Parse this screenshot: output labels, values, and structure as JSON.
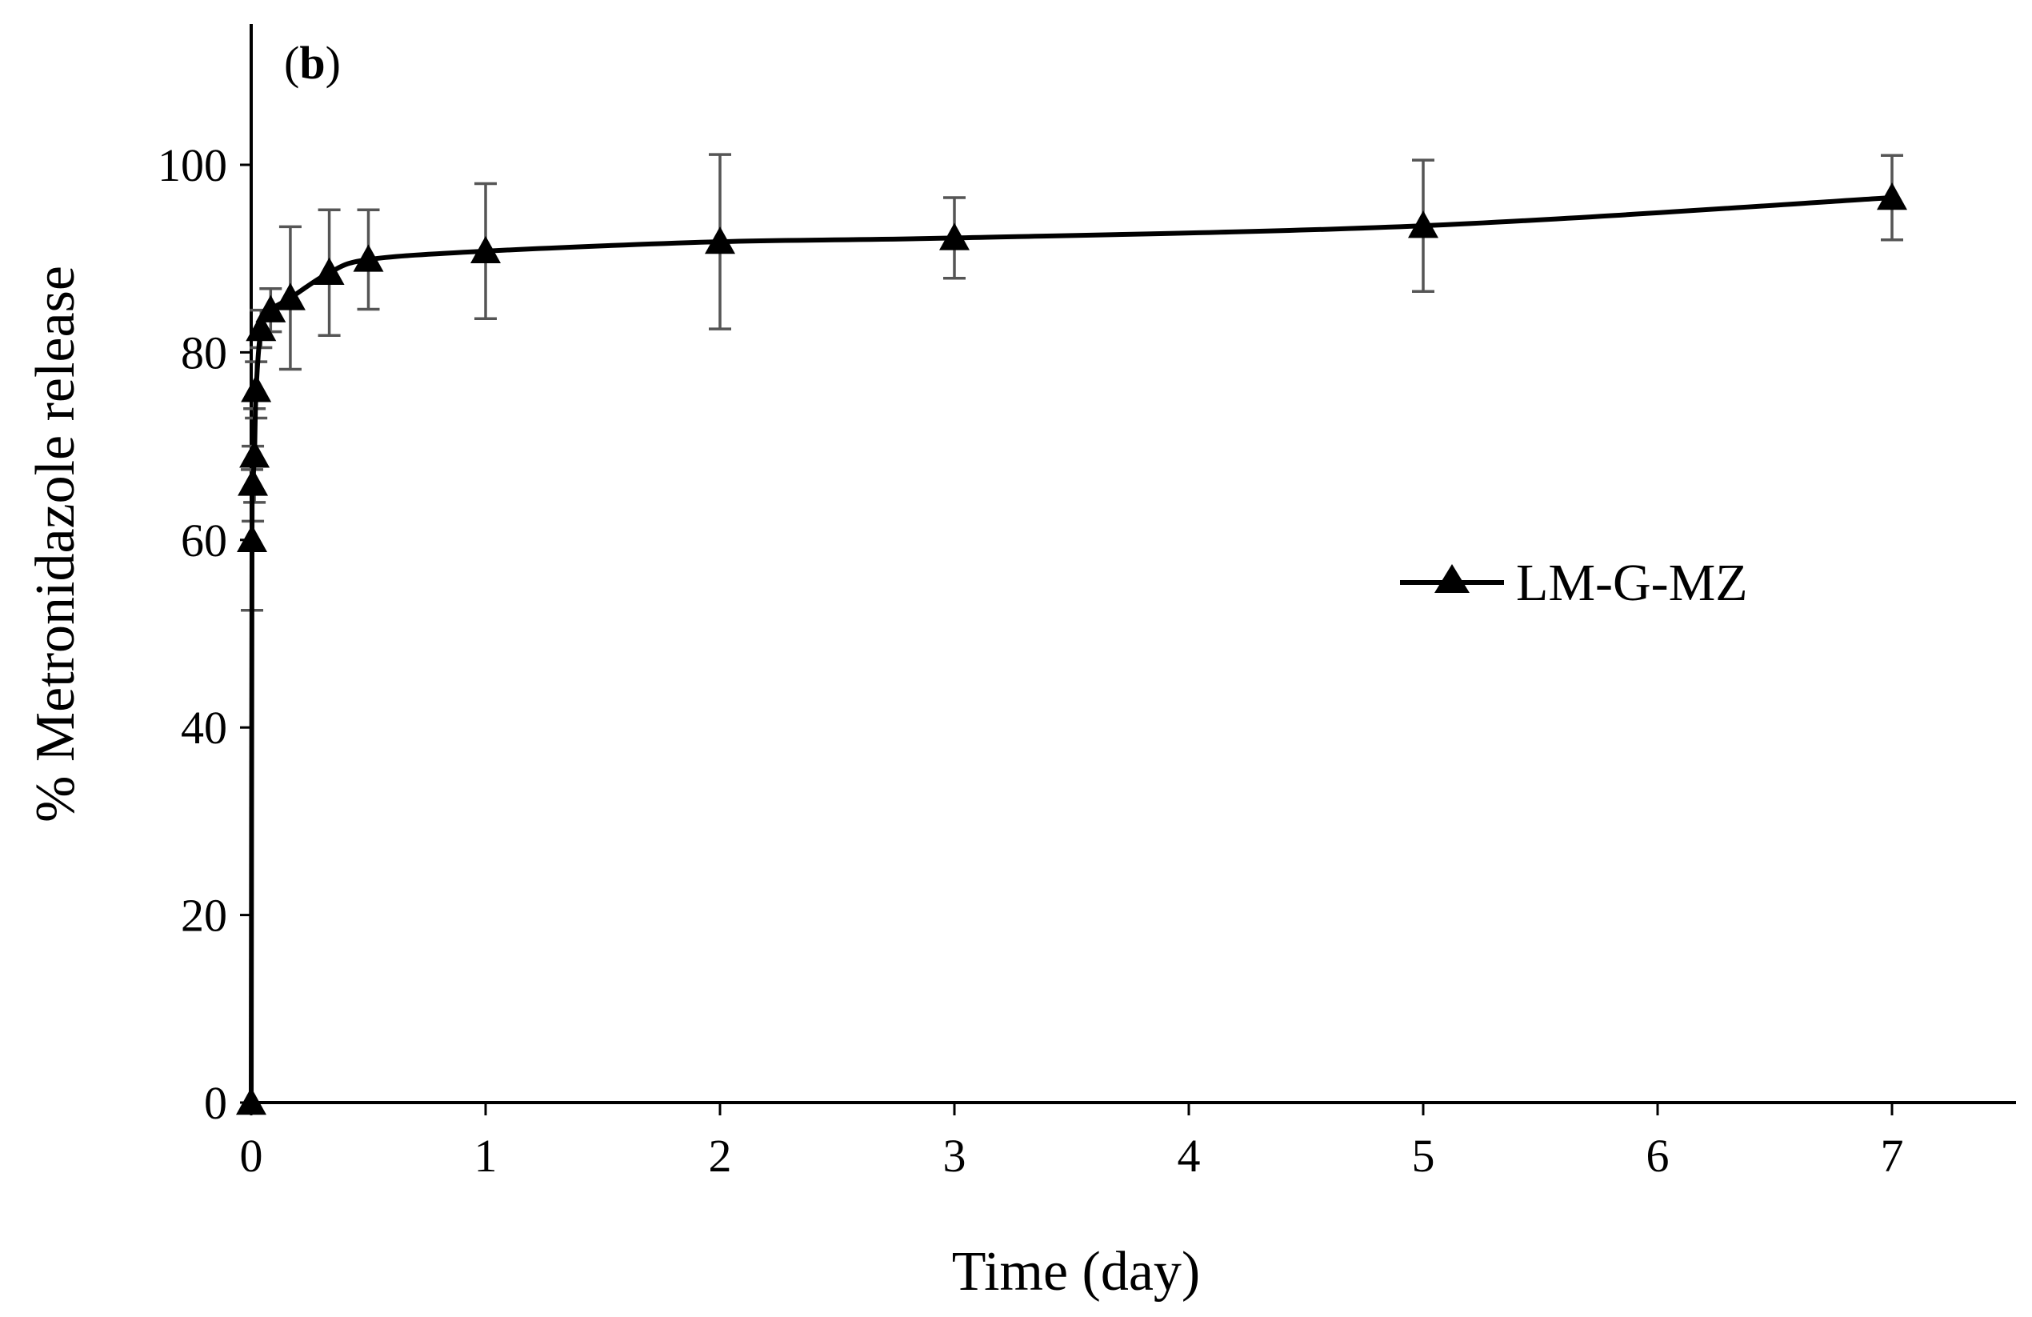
{
  "chart_data": {
    "type": "line",
    "panel_label": "b",
    "xlabel": "Time (day)",
    "ylabel": "% Metronidazole release",
    "xlim": [
      0,
      7.6
    ],
    "ylim": [
      0,
      115
    ],
    "xticks": [
      0,
      1,
      2,
      3,
      4,
      5,
      6,
      7
    ],
    "yticks": [
      0,
      20,
      40,
      60,
      80,
      100
    ],
    "grid": false,
    "legend_position": "right-middle",
    "series": [
      {
        "name": "LM-G-MZ",
        "marker": "triangle",
        "color": "#000000",
        "error_color": "#555555",
        "x": [
          0,
          0.0035,
          0.007,
          0.014,
          0.021,
          0.042,
          0.083,
          0.167,
          0.333,
          0.5,
          1,
          2,
          3,
          5,
          7
        ],
        "y": [
          0,
          60,
          66,
          69,
          76,
          82.5,
          84.5,
          85.8,
          88.5,
          89.9,
          90.8,
          91.8,
          92.2,
          93.5,
          96.5
        ],
        "err": [
          0,
          7.5,
          4,
          5,
          3,
          2,
          2.3,
          7.6,
          6.7,
          5.3,
          7.2,
          9.3,
          4.3,
          7,
          4.5
        ]
      }
    ]
  }
}
